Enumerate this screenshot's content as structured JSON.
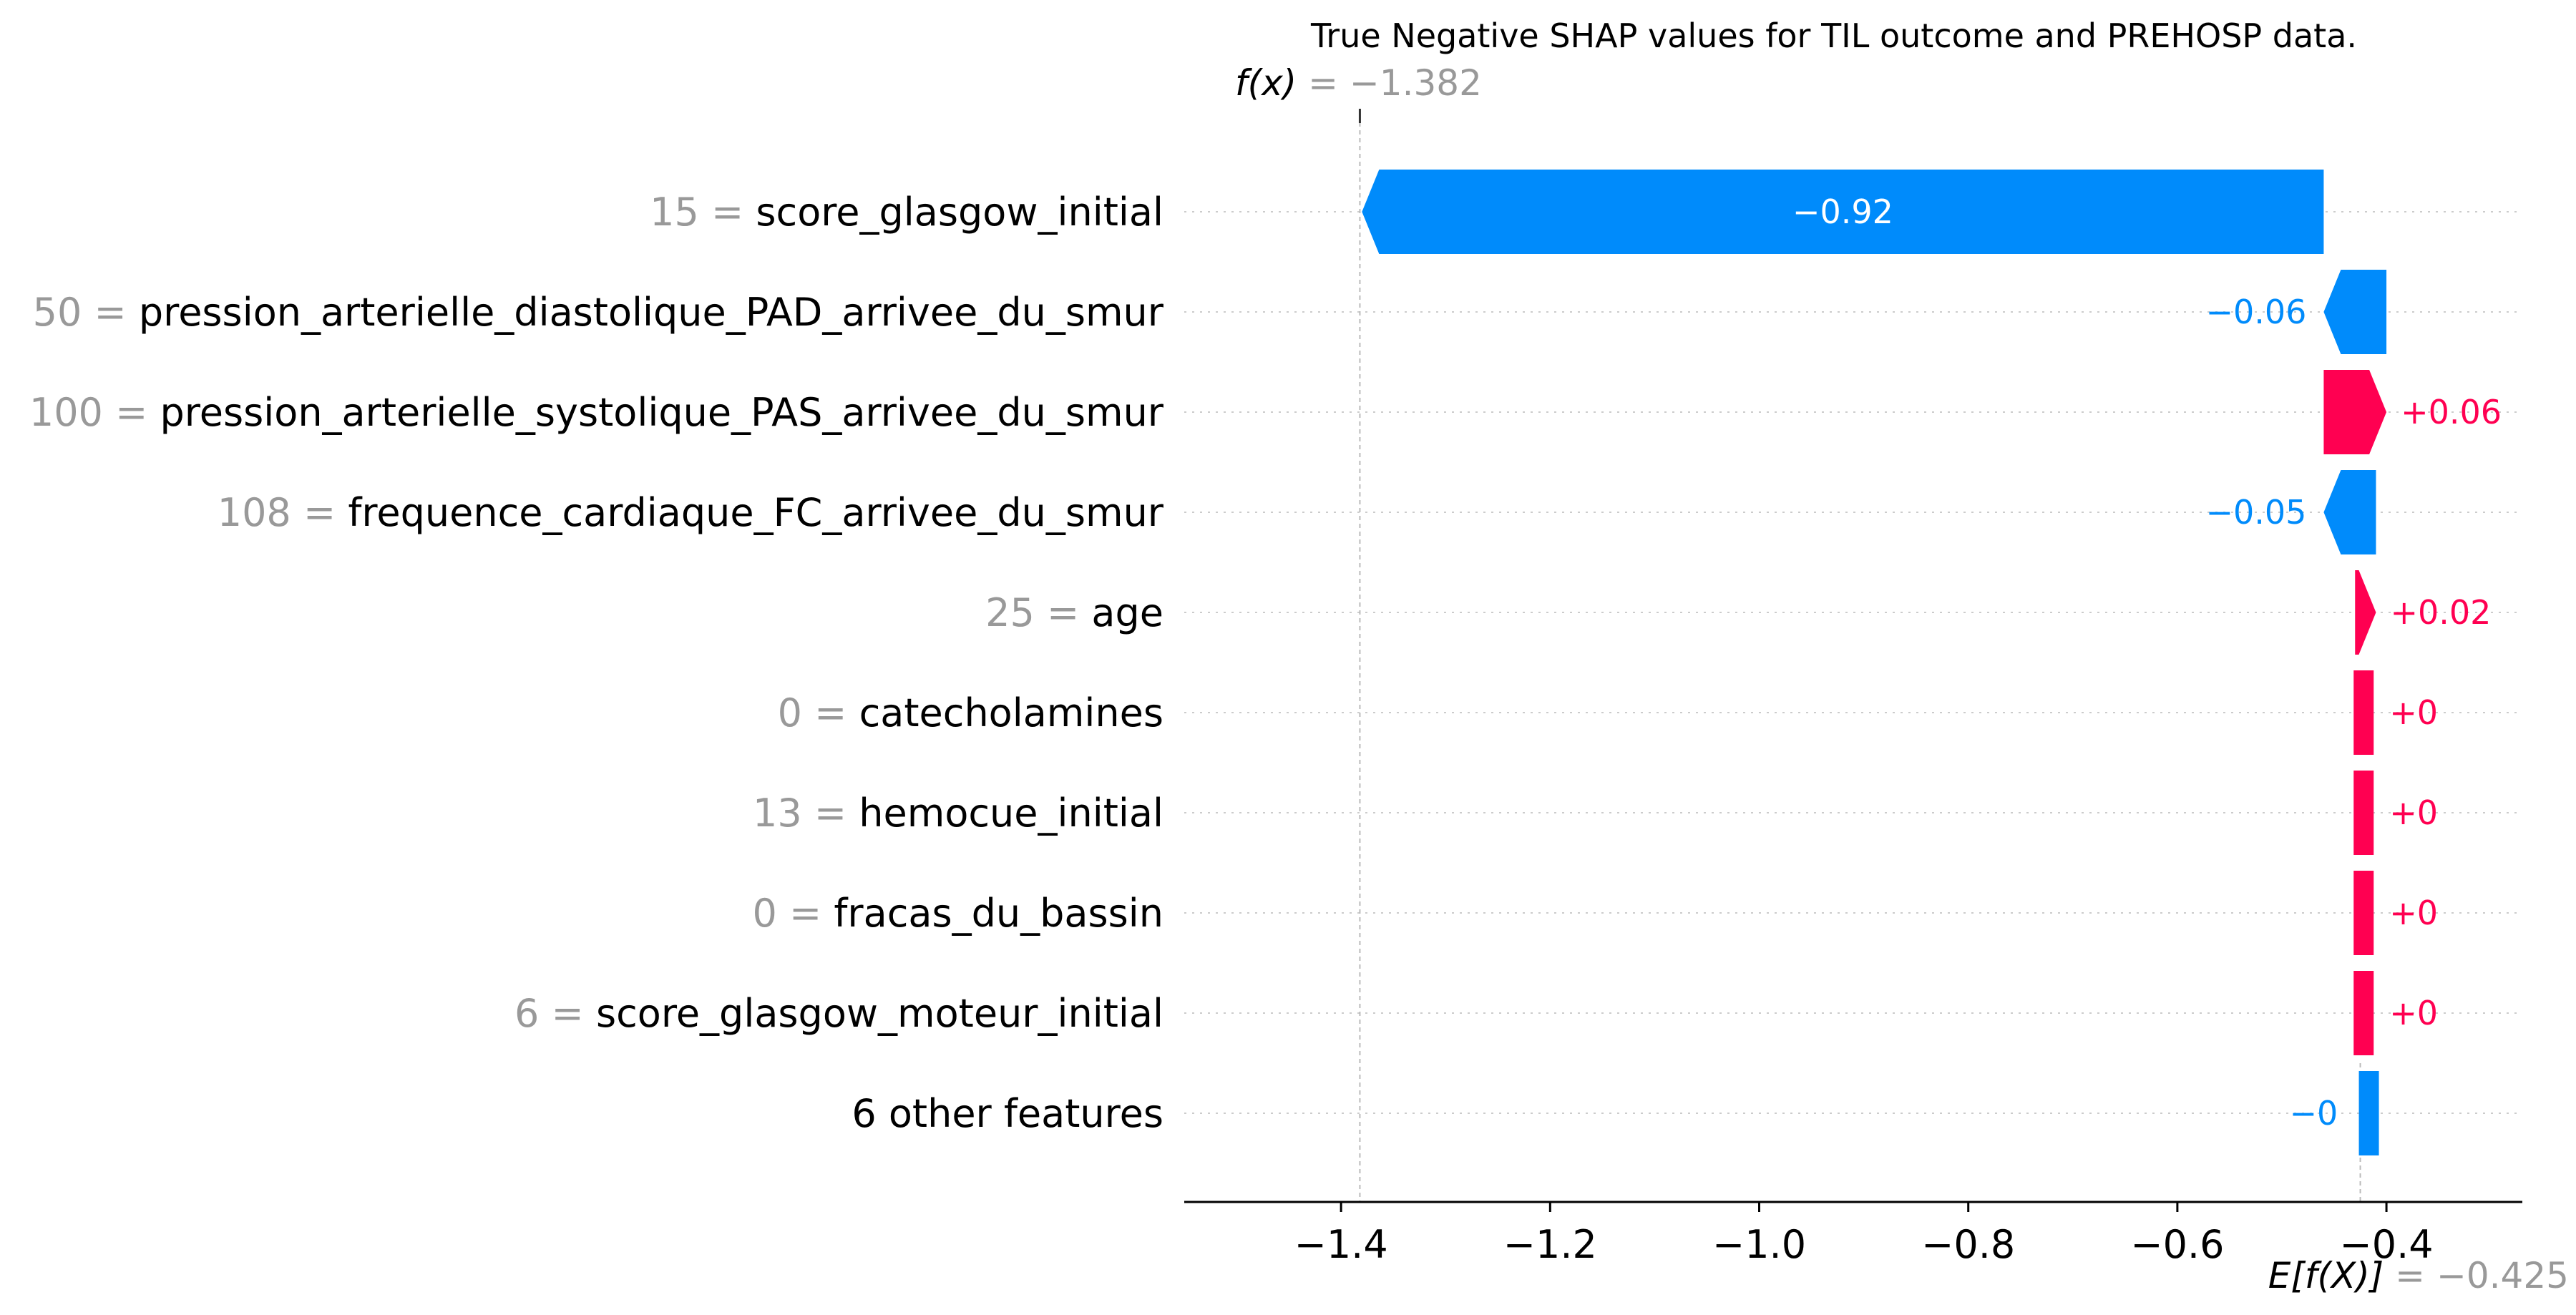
{
  "chart_data": {
    "type": "waterfall",
    "title": "True Negative SHAP values for TIL outcome and PREHOSP data.",
    "fx": {
      "label": "f(x)",
      "value": -1.382,
      "text": "= −1.382"
    },
    "efx": {
      "label": "E[f(X)]",
      "value": -0.425,
      "text": "= −0.425"
    },
    "xlim": [
      -1.55,
      -0.27
    ],
    "xticks": [
      -1.4,
      -1.2,
      -1.0,
      -0.8,
      -0.6,
      -0.4
    ],
    "xtick_labels": [
      "−1.4",
      "−1.2",
      "−1.0",
      "−0.8",
      "−0.6",
      "−0.4"
    ],
    "grid": "dotted horizontal",
    "colors": {
      "positive": "#ff0051",
      "negative": "#008bfb",
      "value_grey": "#999999"
    },
    "rows": [
      {
        "value": "15",
        "name": "score_glasgow_initial",
        "shap": -0.92,
        "label": "−0.92"
      },
      {
        "value": "50",
        "name": "pression_arterielle_diastolique_PAD_arrivee_du_smur",
        "shap": -0.06,
        "label": "−0.06"
      },
      {
        "value": "100",
        "name": "pression_arterielle_systolique_PAS_arrivee_du_smur",
        "shap": 0.06,
        "label": "+0.06"
      },
      {
        "value": "108",
        "name": "frequence_cardiaque_FC_arrivee_du_smur",
        "shap": -0.05,
        "label": "−0.05"
      },
      {
        "value": "25",
        "name": "age",
        "shap": 0.02,
        "label": "+0.02"
      },
      {
        "value": "0",
        "name": "catecholamines",
        "shap": 0.0,
        "label": "+0"
      },
      {
        "value": "13",
        "name": "hemocue_initial",
        "shap": 0.0,
        "label": "+0"
      },
      {
        "value": "0",
        "name": "fracas_du_bassin",
        "shap": 0.0,
        "label": "+0"
      },
      {
        "value": "6",
        "name": "score_glasgow_moteur_initial",
        "shap": 0.0,
        "label": "+0"
      },
      {
        "value": "",
        "name": "6 other features",
        "shap": -0.005,
        "label": "−0"
      }
    ]
  }
}
